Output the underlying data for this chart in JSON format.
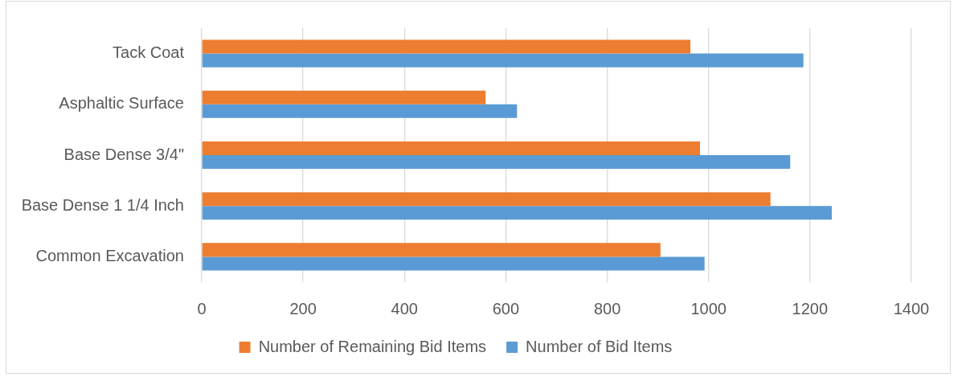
{
  "chart_data": {
    "type": "bar",
    "orientation": "horizontal",
    "categories": [
      "Tack Coat",
      "Asphaltic Surface",
      "Base Dense 3/4\"",
      "Base Dense 1 1/4 Inch",
      "Common Excavation"
    ],
    "series": [
      {
        "name": "Number of Remaining Bid Items",
        "color": "#ed7d31",
        "values": [
          964,
          560,
          983,
          1122,
          905
        ]
      },
      {
        "name": "Number of Bid Items",
        "color": "#5b9bd5",
        "values": [
          1187,
          622,
          1161,
          1243,
          992
        ]
      }
    ],
    "xlim": [
      0,
      1400
    ],
    "xticks": [
      0,
      200,
      400,
      600,
      800,
      1000,
      1200,
      1400
    ],
    "grid": "x",
    "legend": "bottom"
  }
}
